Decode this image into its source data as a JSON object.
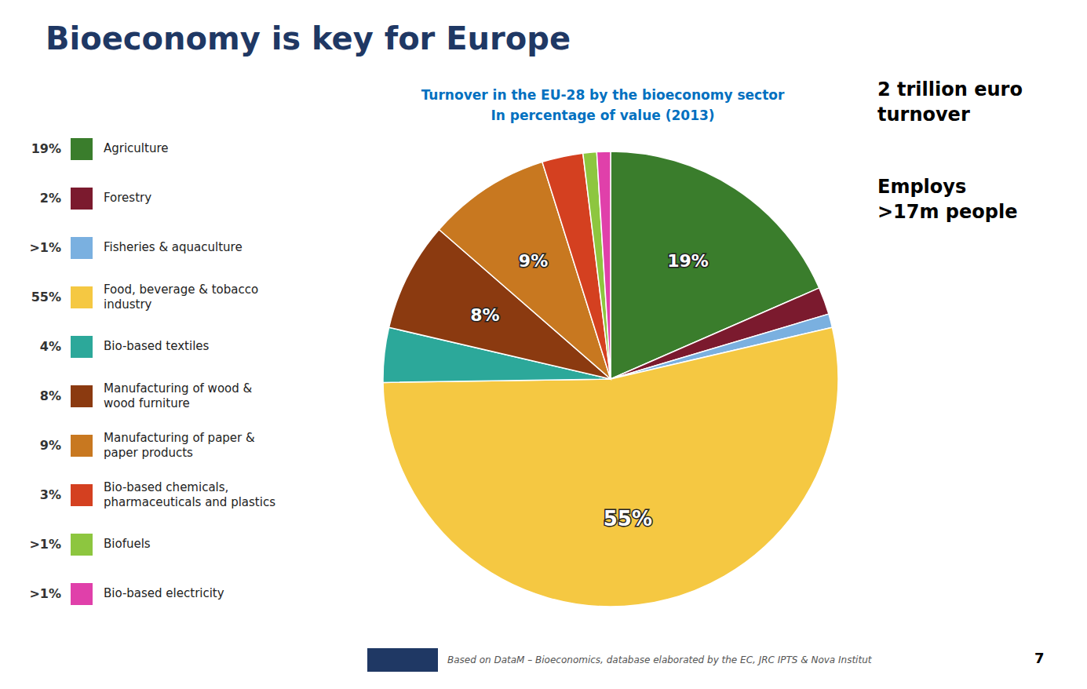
{
  "chart_data": {
    "type": "pie",
    "title": "Bioeconomy is key for Europe",
    "subtitle": "Turnover in the EU-28 by the bioeconomy sector\nIn percentage of value (2013)",
    "categories": [
      "Agriculture",
      "Forestry",
      "Fisheries & aquaculture",
      "Food, beverage & tobacco\nindustry",
      "Bio-based textiles",
      "Manufacturing of wood &\nwood furniture",
      "Manufacturing of paper &\npaper products",
      "Bio-based chemicals,\npharmaceuticals and plastics",
      "Biofuels",
      "Bio-based electricity"
    ],
    "values": [
      19,
      2,
      1,
      55,
      4,
      8,
      9,
      3,
      1,
      1
    ],
    "value_labels": [
      "19%",
      "2%",
      ">1%",
      "55%",
      "4%",
      "8%",
      "9%",
      "3%",
      ">1%",
      ">1%"
    ],
    "colors": [
      "#3a7d2c",
      "#7b1a2e",
      "#7ab0e0",
      "#f5c842",
      "#2ca89a",
      "#8b3a10",
      "#c87820",
      "#d44020",
      "#8dc63f",
      "#e040aa"
    ],
    "data_labels": true,
    "annotations": [
      "2 trillion euro",
      "turnover",
      "Employs",
      ">17m people",
      "Based on DataM – Bioeconomics, database elaborated by the EC, JRC IPTS & Nova Institut",
      "7"
    ]
  }
}
